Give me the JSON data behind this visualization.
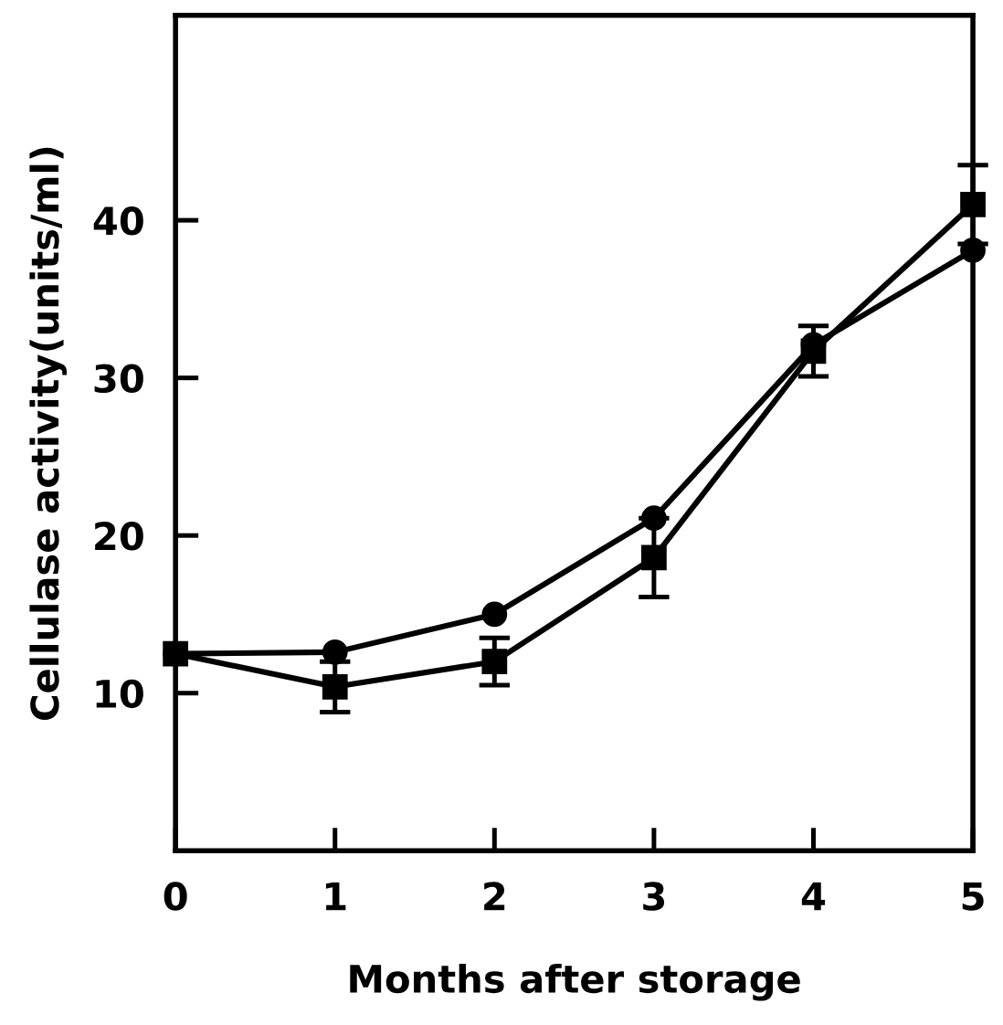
{
  "chart_data": {
    "type": "line",
    "xlabel": "Months after storage",
    "ylabel": "Cellulase activity(units/ml)",
    "x": [
      0,
      1,
      2,
      3,
      4,
      5
    ],
    "series": [
      {
        "color": "#000000",
        "marker": "circle",
        "values": [
          12.5,
          12.6,
          15.0,
          21.1,
          32.1,
          38.1
        ]
      },
      {
        "color": "#000000",
        "marker": "square",
        "values": [
          12.5,
          10.4,
          12.0,
          18.6,
          31.7,
          41.0
        ],
        "errors": [
          null,
          1.6,
          1.5,
          2.5,
          1.6,
          2.5
        ]
      }
    ],
    "xlim": [
      0,
      5
    ],
    "xticks": [
      0,
      1,
      2,
      3,
      4,
      5
    ],
    "ylim": [
      0,
      53
    ],
    "yticks": [
      10,
      20,
      30,
      40
    ],
    "grid": false,
    "legend": false,
    "line_style": "solid"
  }
}
